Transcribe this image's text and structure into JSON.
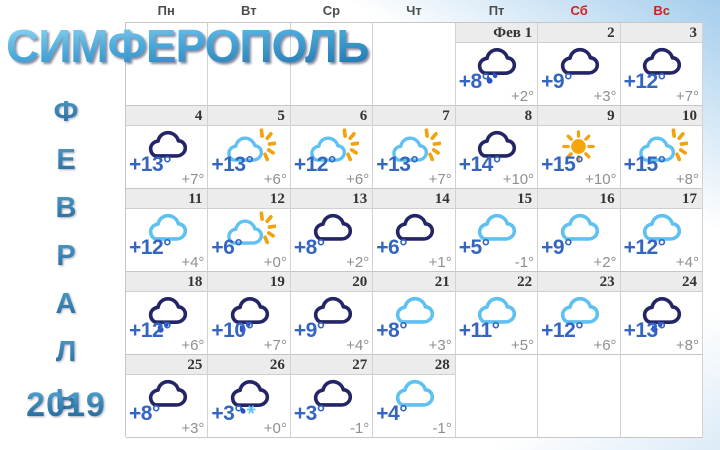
{
  "page": {
    "title": "СИМФЕРОПОЛЬ",
    "year": "2019",
    "month_letters": [
      "Ф",
      "Е",
      "В",
      "Р",
      "А",
      "Л",
      "Ь"
    ]
  },
  "colors": {
    "temp_high_blue": "#3465c0",
    "temp_low_gray": "#8f8f8f",
    "cloud_dark": "#232566",
    "cloud_light": "#5ec1f1",
    "sun_orange": "#f2a20c",
    "rain_blue": "#2b50cc",
    "weekend_red": "#cc2222"
  },
  "weekdays": [
    {
      "label": "Пн",
      "weekend": false
    },
    {
      "label": "Вт",
      "weekend": false
    },
    {
      "label": "Ср",
      "weekend": false
    },
    {
      "label": "Чт",
      "weekend": false
    },
    {
      "label": "Пт",
      "weekend": false
    },
    {
      "label": "Сб",
      "weekend": true
    },
    {
      "label": "Вс",
      "weekend": true
    }
  ],
  "calendar": {
    "leading_empty": 4,
    "trailing_empty": 3,
    "days": [
      {
        "label": "Фев 1",
        "icon": "rain-cloud",
        "high": "+8°",
        "low": "+2°"
      },
      {
        "label": "2",
        "icon": "cloud-dark",
        "high": "+9°",
        "low": "+3°"
      },
      {
        "label": "3",
        "icon": "cloud-dark",
        "high": "+12°",
        "low": "+7°"
      },
      {
        "label": "4",
        "icon": "cloud-dark",
        "high": "+13°",
        "low": "+7°"
      },
      {
        "label": "5",
        "icon": "partly-sunny",
        "high": "+13°",
        "low": "+6°"
      },
      {
        "label": "6",
        "icon": "partly-sunny",
        "high": "+12°",
        "low": "+6°"
      },
      {
        "label": "7",
        "icon": "partly-sunny",
        "high": "+13°",
        "low": "+7°"
      },
      {
        "label": "8",
        "icon": "cloud-dark",
        "high": "+14°",
        "low": "+10°"
      },
      {
        "label": "9",
        "icon": "sunny",
        "high": "+15°",
        "low": "+10°"
      },
      {
        "label": "10",
        "icon": "partly-sunny",
        "high": "+15°",
        "low": "+8°"
      },
      {
        "label": "11",
        "icon": "cloud-light",
        "high": "+12°",
        "low": "+4°"
      },
      {
        "label": "12",
        "icon": "partly-sunny",
        "high": "+6°",
        "low": "+0°"
      },
      {
        "label": "13",
        "icon": "cloud-dark",
        "high": "+8°",
        "low": "+2°"
      },
      {
        "label": "14",
        "icon": "cloud-dark",
        "high": "+6°",
        "low": "+1°"
      },
      {
        "label": "15",
        "icon": "cloud-light",
        "high": "+5°",
        "low": "-1°"
      },
      {
        "label": "16",
        "icon": "cloud-light",
        "high": "+9°",
        "low": "+2°"
      },
      {
        "label": "17",
        "icon": "cloud-light",
        "high": "+12°",
        "low": "+4°"
      },
      {
        "label": "18",
        "icon": "rain-cloud",
        "high": "+12°",
        "low": "+6°"
      },
      {
        "label": "19",
        "icon": "rain-cloud",
        "high": "+10°",
        "low": "+7°"
      },
      {
        "label": "20",
        "icon": "cloud-dark",
        "high": "+9°",
        "low": "+4°"
      },
      {
        "label": "21",
        "icon": "cloud-light",
        "high": "+8°",
        "low": "+3°"
      },
      {
        "label": "22",
        "icon": "cloud-light",
        "high": "+11°",
        "low": "+5°"
      },
      {
        "label": "23",
        "icon": "cloud-light",
        "high": "+12°",
        "low": "+6°"
      },
      {
        "label": "24",
        "icon": "rain-cloud",
        "high": "+13°",
        "low": "+8°"
      },
      {
        "label": "25",
        "icon": "cloud-dark",
        "high": "+8°",
        "low": "+3°"
      },
      {
        "label": "26",
        "icon": "sleet-cloud",
        "high": "+3°",
        "low": "+0°"
      },
      {
        "label": "27",
        "icon": "cloud-dark",
        "high": "+3°",
        "low": "-1°"
      },
      {
        "label": "28",
        "icon": "cloud-light",
        "high": "+4°",
        "low": "-1°"
      }
    ]
  }
}
